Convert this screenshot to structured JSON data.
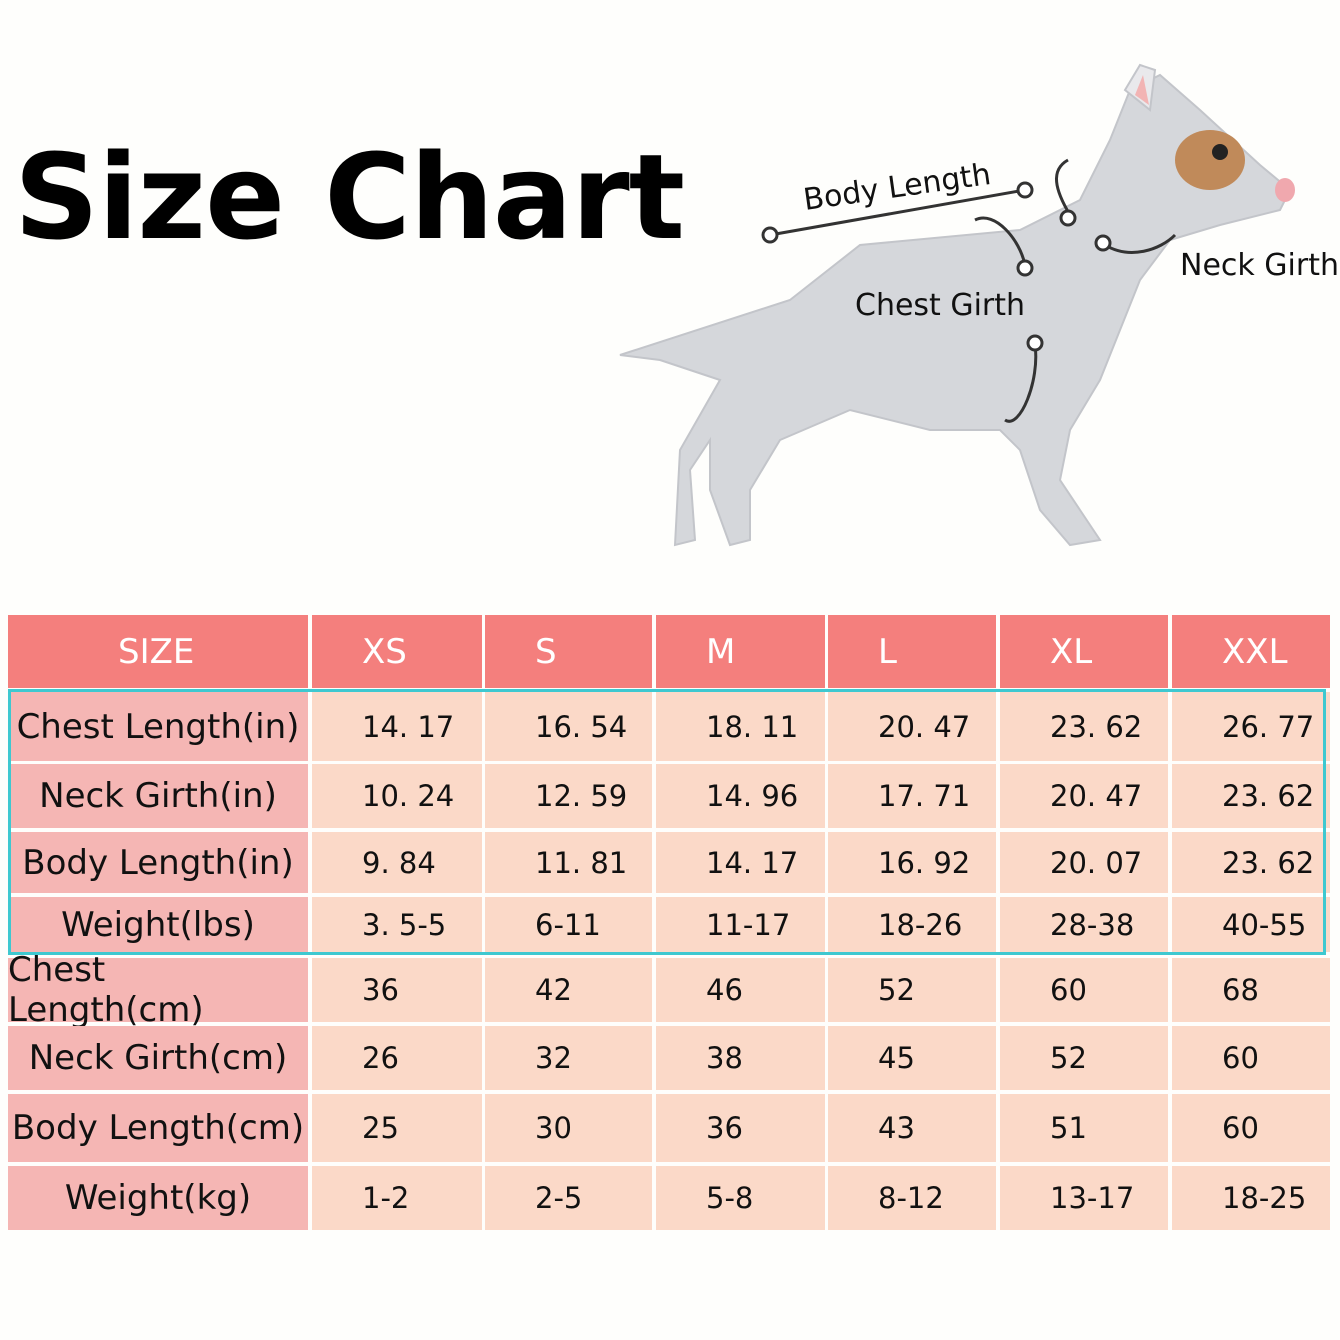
{
  "header": {
    "title": "Size Chart"
  },
  "diagram": {
    "labels": [
      "Body Length",
      "Neck Girth",
      "Chest Girth"
    ]
  },
  "table": {
    "header": [
      "SIZE",
      "XS",
      "S",
      "M",
      "L",
      "XL",
      "XXL"
    ],
    "rows": [
      [
        "Chest Length(in)",
        "14. 17",
        "16. 54",
        "18. 11",
        "20. 47",
        "23. 62",
        "26. 77"
      ],
      [
        "Neck Girth(in)",
        "10. 24",
        "12. 59",
        "14. 96",
        "17. 71",
        "20. 47",
        "23. 62"
      ],
      [
        "Body Length(in)",
        "9. 84",
        "11. 81",
        "14. 17",
        "16. 92",
        "20. 07",
        "23. 62"
      ],
      [
        "Weight(lbs)",
        "3. 5-5",
        "6-11",
        "11-17",
        "18-26",
        "28-38",
        "40-55"
      ],
      [
        "Chest Length(cm)",
        "36",
        "42",
        "46",
        "52",
        "60",
        "68"
      ],
      [
        "Neck Girth(cm)",
        "26",
        "32",
        "38",
        "45",
        "52",
        "60"
      ],
      [
        "Body Length(cm)",
        "25",
        "30",
        "36",
        "43",
        "51",
        "60"
      ],
      [
        "Weight(kg)",
        "1-2",
        "2-5",
        "5-8",
        "8-12",
        "13-17",
        "18-25"
      ]
    ]
  }
}
